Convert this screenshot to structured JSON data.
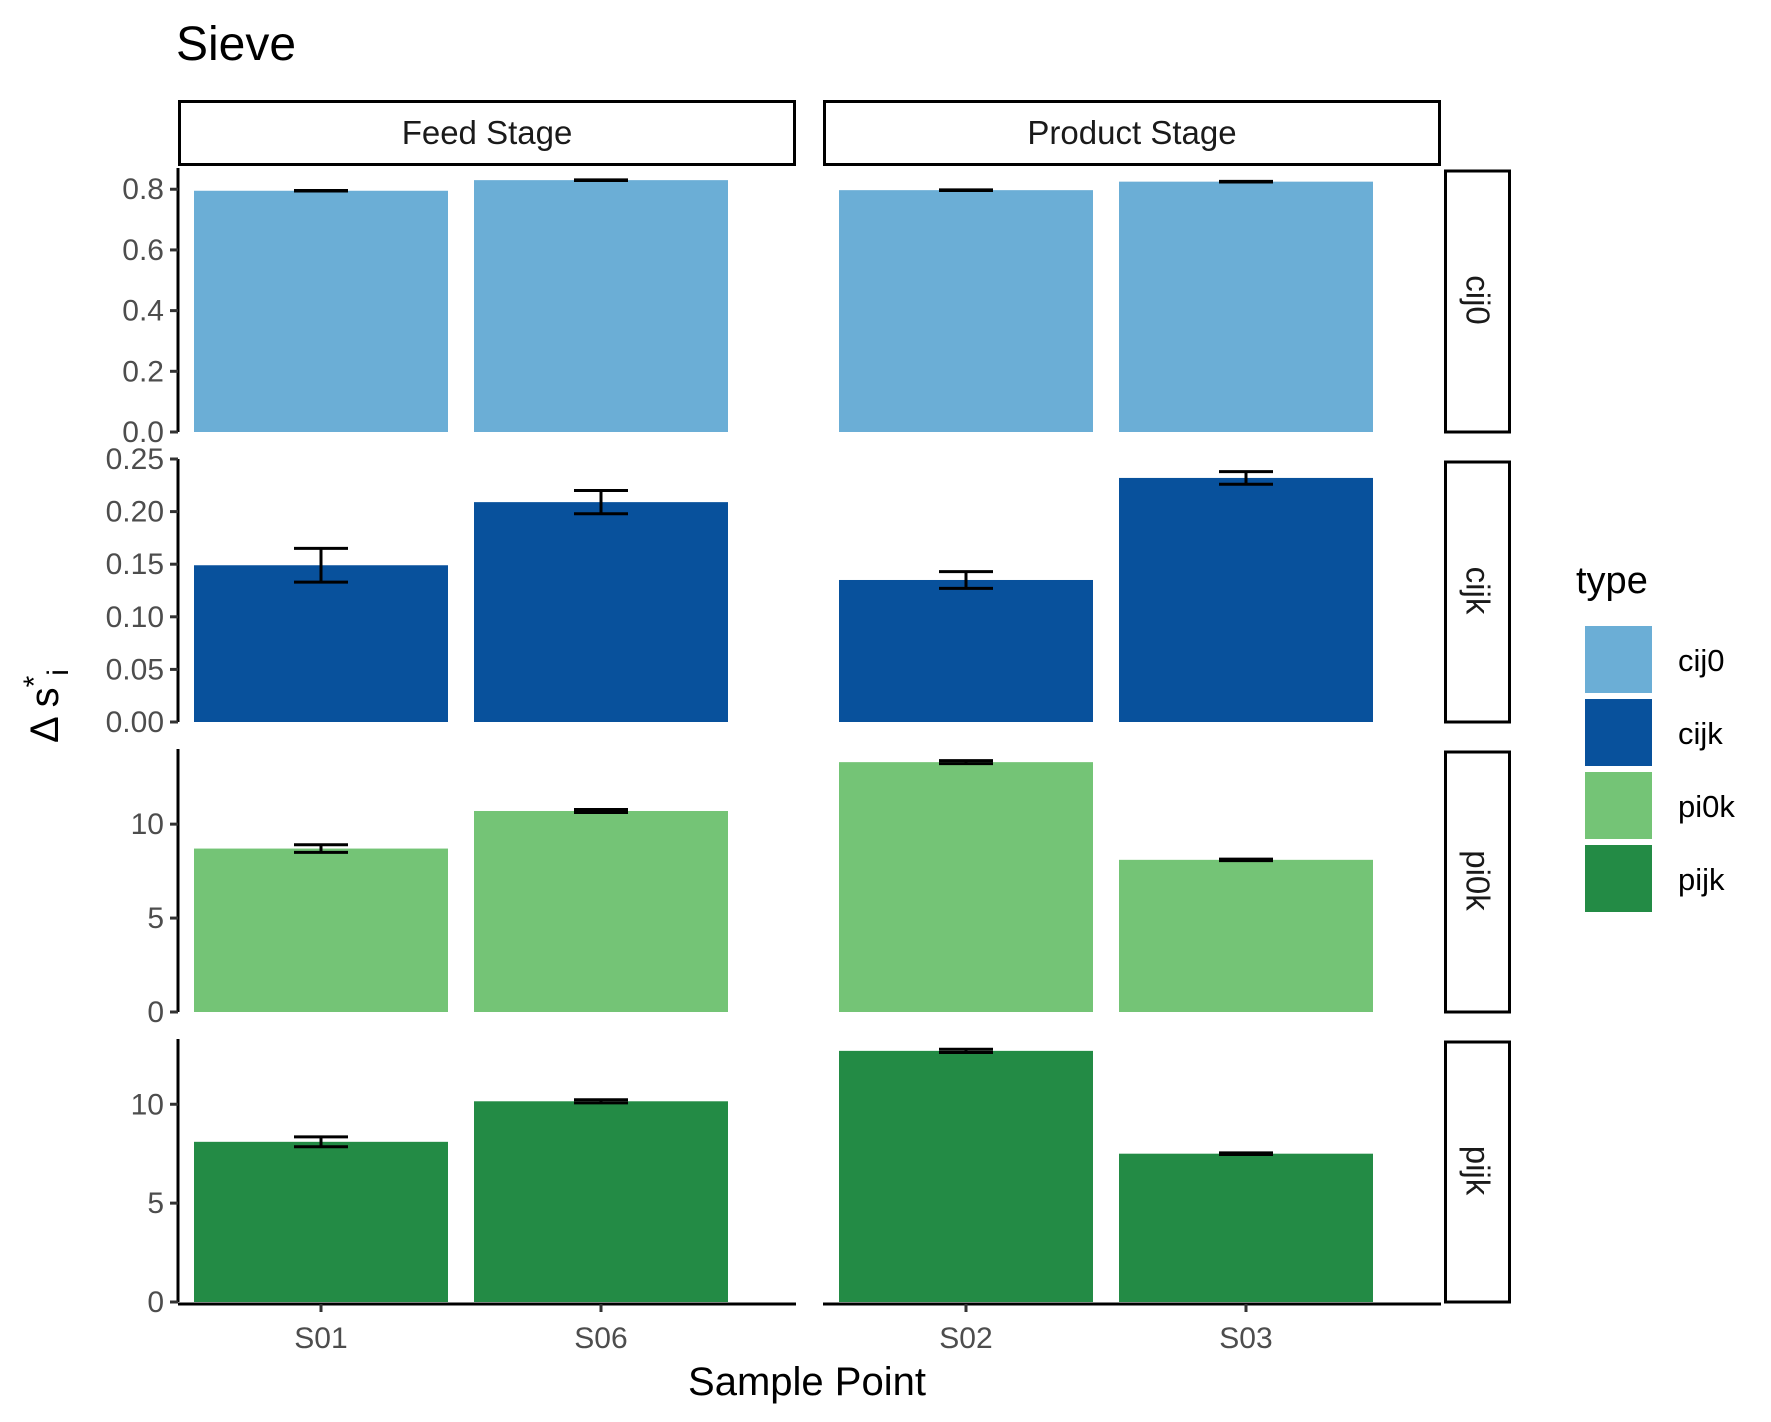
{
  "chart_data": {
    "type": "bar",
    "title": "Sieve",
    "xlabel": "Sample Point",
    "ylabel": {
      "main": "Δ  s",
      "sup": "*",
      "sub": "i"
    },
    "column_facets": [
      {
        "label": "Feed Stage",
        "categories": [
          "S01",
          "S06"
        ]
      },
      {
        "label": "Product Stage",
        "categories": [
          "S02",
          "S03"
        ]
      }
    ],
    "row_facets": [
      {
        "label": "cij0",
        "ylim": [
          0,
          0.87
        ],
        "ticks": [
          "0.0",
          "0.2",
          "0.4",
          "0.6",
          "0.8"
        ],
        "tick_values": [
          0,
          0.2,
          0.4,
          0.6,
          0.8
        ]
      },
      {
        "label": "cijk",
        "ylim": [
          0,
          0.25
        ],
        "ticks": [
          "0.00",
          "0.05",
          "0.10",
          "0.15",
          "0.20",
          "0.25"
        ],
        "tick_values": [
          0,
          0.05,
          0.1,
          0.15,
          0.2,
          0.25
        ]
      },
      {
        "label": "pi0k",
        "ylim": [
          0,
          14.0
        ],
        "ticks": [
          "0",
          "5",
          "10"
        ],
        "tick_values": [
          0,
          5,
          10
        ]
      },
      {
        "label": "pijk",
        "ylim": [
          0,
          13.3
        ],
        "ticks": [
          "0",
          "5",
          "10"
        ],
        "tick_values": [
          0,
          5,
          10
        ]
      }
    ],
    "series": [
      {
        "name": "cij0",
        "color": "#6BAED6",
        "values": {
          "S01": 0.795,
          "S06": 0.83,
          "S02": 0.797,
          "S03": 0.825
        },
        "errors": {
          "S01": 0.001,
          "S06": 0.001,
          "S02": 0.001,
          "S03": 0.001
        }
      },
      {
        "name": "cijk",
        "color": "#08519C",
        "values": {
          "S01": 0.149,
          "S06": 0.209,
          "S02": 0.135,
          "S03": 0.232
        },
        "errors": {
          "S01": 0.016,
          "S06": 0.011,
          "S02": 0.008,
          "S03": 0.006
        }
      },
      {
        "name": "pi0k",
        "color": "#74C476",
        "values": {
          "S01": 8.7,
          "S06": 10.7,
          "S02": 13.3,
          "S03": 8.1
        },
        "errors": {
          "S01": 0.2,
          "S06": 0.08,
          "S02": 0.08,
          "S03": 0.04
        }
      },
      {
        "name": "pijk",
        "color": "#238B45",
        "values": {
          "S01": 8.1,
          "S06": 10.15,
          "S02": 12.7,
          "S03": 7.5
        },
        "errors": {
          "S01": 0.25,
          "S06": 0.08,
          "S02": 0.08,
          "S03": 0.04
        }
      }
    ],
    "legend": {
      "title": "type",
      "entries": [
        "cij0",
        "cijk",
        "pi0k",
        "pijk"
      ],
      "placement": "right"
    },
    "grid": false
  }
}
